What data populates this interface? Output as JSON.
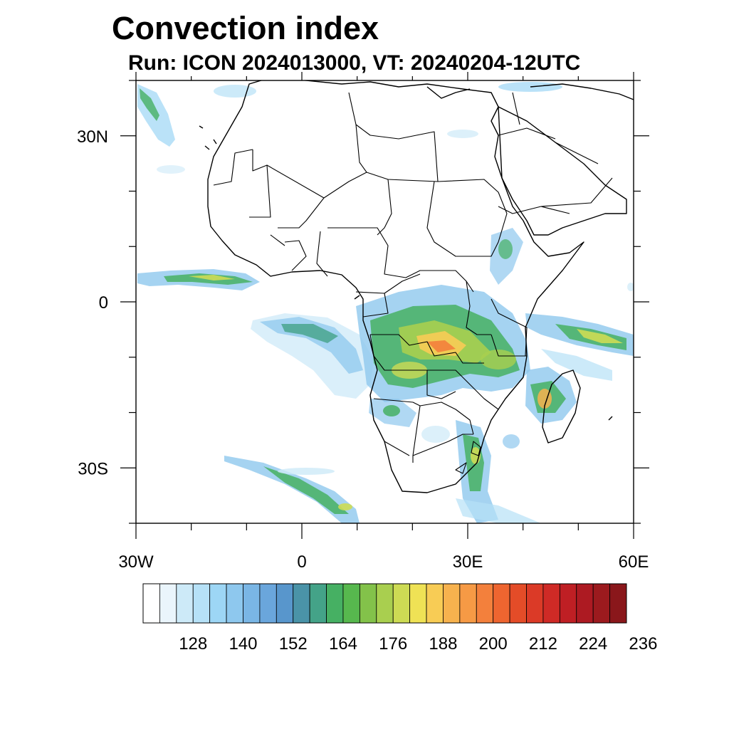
{
  "title": "Convection index",
  "subtitle": "Run: ICON 2024013000,  VT: 20240204-12UTC",
  "map": {
    "lon_range": [
      -30,
      60
    ],
    "lat_range": [
      -40,
      40
    ],
    "lon_ticks": [
      {
        "value": -30,
        "label": "30W"
      },
      {
        "value": 0,
        "label": "0"
      },
      {
        "value": 30,
        "label": "30E"
      },
      {
        "value": 60,
        "label": "60E"
      }
    ],
    "lat_ticks": [
      {
        "value": 30,
        "label": "30N"
      },
      {
        "value": 0,
        "label": "0"
      },
      {
        "value": -30,
        "label": "30S"
      }
    ]
  },
  "colorbar": {
    "colors": [
      "#ffffff",
      "#eaf5fc",
      "#cdeaf8",
      "#b6e1f7",
      "#9dd6f5",
      "#8ec8ee",
      "#7ab6e5",
      "#6aa6dc",
      "#5896cc",
      "#4a93a8",
      "#44a388",
      "#46b063",
      "#57b84e",
      "#83c24a",
      "#a9cf4f",
      "#cddb54",
      "#efe255",
      "#f8cc55",
      "#f7b24e",
      "#f69a45",
      "#f3803c",
      "#ee6530",
      "#e44c28",
      "#db3a27",
      "#cf2a26",
      "#bf1f24",
      "#ad1a22",
      "#9c1a1e",
      "#8a171b"
    ],
    "labels": [
      "128",
      "140",
      "152",
      "164",
      "176",
      "188",
      "200",
      "212",
      "224",
      "236"
    ]
  }
}
